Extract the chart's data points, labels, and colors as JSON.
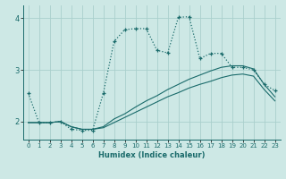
{
  "xlabel": "Humidex (Indice chaleur)",
  "bg_color": "#cde8e5",
  "grid_color": "#aacfcc",
  "line_color": "#1a6b6b",
  "xlim": [
    -0.5,
    23.5
  ],
  "ylim": [
    1.65,
    4.25
  ],
  "yticks": [
    2,
    3,
    4
  ],
  "xticks": [
    0,
    1,
    2,
    3,
    4,
    5,
    6,
    7,
    8,
    9,
    10,
    11,
    12,
    13,
    14,
    15,
    16,
    17,
    18,
    19,
    20,
    21,
    22,
    23
  ],
  "line1_x": [
    0,
    1,
    2,
    3,
    4,
    5,
    6,
    7,
    8,
    9,
    10,
    11,
    12,
    13,
    14,
    15,
    16,
    17,
    18,
    19,
    20,
    21,
    22,
    23
  ],
  "line1_y": [
    2.55,
    1.98,
    1.98,
    2.0,
    1.85,
    1.83,
    1.83,
    2.55,
    3.55,
    3.78,
    3.8,
    3.8,
    3.38,
    3.33,
    4.02,
    4.03,
    3.22,
    3.32,
    3.32,
    3.05,
    3.05,
    3.0,
    2.72,
    2.6
  ],
  "line2_x": [
    0,
    1,
    2,
    3,
    4,
    5,
    6,
    7,
    8,
    9,
    10,
    11,
    12,
    13,
    14,
    15,
    16,
    17,
    18,
    19,
    20,
    21,
    22,
    23
  ],
  "line2_y": [
    1.98,
    1.98,
    1.98,
    2.0,
    1.9,
    1.85,
    1.85,
    1.9,
    2.05,
    2.15,
    2.28,
    2.4,
    2.5,
    2.62,
    2.72,
    2.82,
    2.9,
    2.98,
    3.05,
    3.08,
    3.08,
    3.02,
    2.72,
    2.48
  ],
  "line3_x": [
    0,
    1,
    2,
    3,
    4,
    5,
    6,
    7,
    8,
    9,
    10,
    11,
    12,
    13,
    14,
    15,
    16,
    17,
    18,
    19,
    20,
    21,
    22,
    23
  ],
  "line3_y": [
    1.98,
    1.98,
    1.98,
    2.0,
    1.9,
    1.85,
    1.85,
    1.88,
    1.98,
    2.08,
    2.18,
    2.28,
    2.38,
    2.48,
    2.56,
    2.65,
    2.72,
    2.78,
    2.85,
    2.9,
    2.92,
    2.88,
    2.62,
    2.4
  ]
}
